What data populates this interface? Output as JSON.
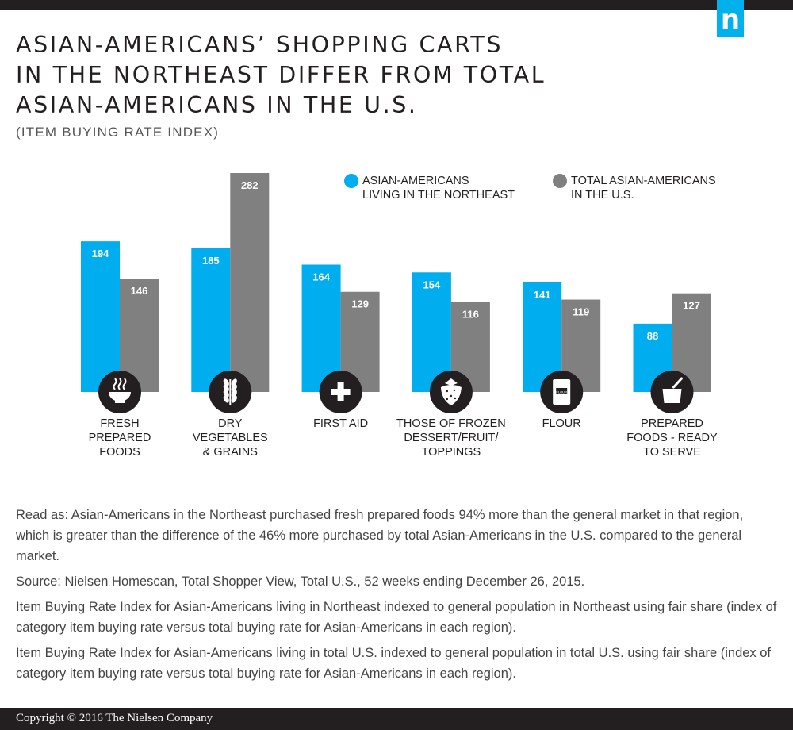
{
  "header": {
    "logo_text": "n",
    "title": "ASIAN-AMERICANS’ SHOPPING CARTS\nIN THE NORTHEAST DIFFER FROM TOTAL\nASIAN-AMERICANS IN THE U.S.",
    "subtitle": "(ITEM BUYING RATE INDEX)"
  },
  "legend": [
    {
      "label": "ASIAN-AMERICANS\nLIVING IN THE NORTHEAST",
      "color": "#00aeef"
    },
    {
      "label": "TOTAL ASIAN-AMERICANS\nIN THE U.S.",
      "color": "#808080"
    }
  ],
  "chart_data": {
    "type": "bar",
    "title": "ASIAN-AMERICANS’ SHOPPING CARTS IN THE NORTHEAST DIFFER FROM TOTAL ASIAN-AMERICANS IN THE U.S.",
    "subtitle": "(ITEM BUYING RATE INDEX)",
    "categories": [
      "FRESH PREPARED FOODS",
      "DRY VEGETABLES & GRAINS",
      "FIRST AID",
      "THOSE OF FROZEN DESSERT/FRUIT/ TOPPINGS",
      "FLOUR",
      "PREPARED FOODS - READY TO SERVE"
    ],
    "category_lines": [
      [
        "FRESH",
        "PREPARED",
        "FOODS"
      ],
      [
        "DRY",
        "VEGETABLES",
        "& GRAINS"
      ],
      [
        "FIRST AID"
      ],
      [
        "THOSE OF FROZEN",
        "DESSERT/FRUIT/",
        "TOPPINGS"
      ],
      [
        "FLOUR"
      ],
      [
        "PREPARED",
        "FOODS - READY",
        "TO SERVE"
      ]
    ],
    "category_icons": [
      "bowl-icon",
      "wheat-icon",
      "first-aid-cross-icon",
      "strawberry-icon",
      "flour-bag-icon",
      "pot-spoon-icon"
    ],
    "icon_text": {
      "flour": "FLOUR"
    },
    "series": [
      {
        "name": "ASIAN-AMERICANS LIVING IN THE NORTHEAST",
        "values": [
          194,
          185,
          164,
          154,
          141,
          88
        ],
        "color": "#00aeef"
      },
      {
        "name": "TOTAL ASIAN-AMERICANS IN THE U.S.",
        "values": [
          146,
          282,
          129,
          116,
          119,
          127
        ],
        "color": "#808080"
      }
    ],
    "ylim": [
      0,
      282
    ],
    "grid": false,
    "legend_position": "top-right"
  },
  "notes": [
    "Read as: Asian-Americans in the Northeast purchased fresh prepared foods 94% more than the general market in that region, which is greater than the difference of the 46% more purchased by total Asian-Americans in the U.S. compared to the general market.",
    "Source: Nielsen Homescan, Total Shopper View, Total U.S., 52 weeks ending December 26, 2015.",
    "Item Buying Rate Index for Asian-Americans living in Northeast indexed to general population in Northeast using fair share (index of category item buying rate versus total buying rate for Asian-Americans in each region).",
    "Item Buying Rate Index for Asian-Americans living in total U.S. indexed to general population in total U.S. using fair share (index of category item buying rate versus total buying rate for Asian-Americans in each region)."
  ],
  "footer": {
    "copyright": "Copyright © 2016 The Nielsen Company"
  }
}
